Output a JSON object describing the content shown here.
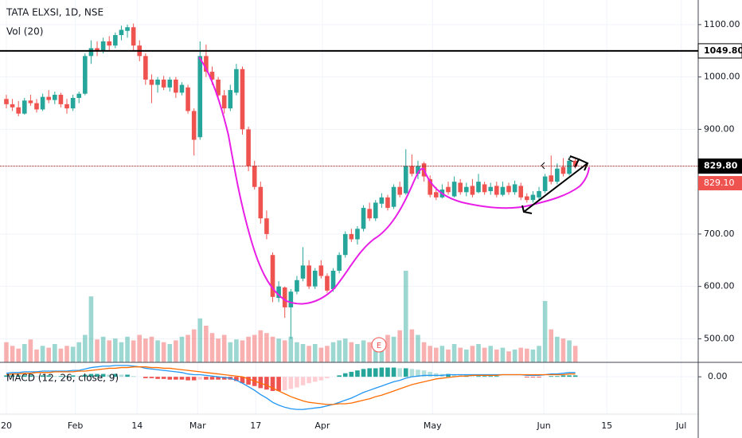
{
  "chart_data": {
    "type": "candlestick",
    "title": "TATA ELXSI, 1D, NSE",
    "volume_label": "Vol (20)",
    "macd_label": "MACD (12, 26, close, 9)",
    "earnings_marker": "E",
    "xlim": [
      -1.05,
      114.3
    ],
    "xticks": [
      {
        "value": 0,
        "label": "20"
      },
      {
        "value": 11.4,
        "label": "Feb"
      },
      {
        "value": 21.6,
        "label": "14"
      },
      {
        "value": 31.6,
        "label": "Mar"
      },
      {
        "value": 41.2,
        "label": "17"
      },
      {
        "value": 52.2,
        "label": "Apr"
      },
      {
        "value": 70.4,
        "label": "May"
      },
      {
        "value": 88.8,
        "label": "Jun"
      },
      {
        "value": 99.2,
        "label": "15"
      },
      {
        "value": 111.5,
        "label": "Jul"
      }
    ],
    "ylim": [
      455,
      1147
    ],
    "yticks": [
      {
        "value": 500,
        "label": "500.00"
      },
      {
        "value": 600,
        "label": "600.00"
      },
      {
        "value": 700,
        "label": "700.00"
      },
      {
        "value": 900,
        "label": "900.00"
      },
      {
        "value": 1000,
        "label": "1000.00"
      },
      {
        "value": 1100,
        "label": "1100.00"
      }
    ],
    "grid": true,
    "up_color": "#26a69a",
    "down_color": "#ef5350",
    "price_lines": [
      {
        "value": 1049.8,
        "label": "1049.80",
        "color": "#000000"
      },
      {
        "value": 829.8,
        "label": "829.80",
        "color": "#8b0000"
      }
    ],
    "last_price": {
      "value": 829.1,
      "label": "829.10",
      "color": "#ef5350"
    },
    "open": [
      958,
      948,
      942,
      930,
      955,
      950,
      938,
      962,
      956,
      966,
      948,
      940,
      960,
      968,
      1040,
      1055,
      1050,
      1068,
      1060,
      1080,
      1088,
      1095,
      1060,
      1040,
      995,
      985,
      995,
      980,
      995,
      970,
      980,
      935,
      885,
      1040,
      1010,
      995,
      965,
      940,
      970,
      1015,
      900,
      830,
      790,
      730,
      660,
      578,
      598,
      560,
      590,
      615,
      640,
      600,
      640,
      620,
      595,
      630,
      660,
      700,
      690,
      710,
      748,
      730,
      758,
      770,
      752,
      790,
      778,
      830,
      815,
      835,
      805,
      780,
      770,
      790,
      772,
      798,
      780,
      792,
      780,
      795,
      782,
      792,
      775,
      792,
      780,
      792,
      772,
      765,
      770,
      782,
      812,
      800,
      828,
      815,
      840
    ],
    "high": [
      966,
      958,
      954,
      960,
      966,
      958,
      968,
      975,
      972,
      970,
      958,
      966,
      972,
      1045,
      1070,
      1068,
      1075,
      1078,
      1085,
      1098,
      1100,
      1102,
      1070,
      1045,
      1005,
      1000,
      1002,
      1000,
      1000,
      990,
      985,
      940,
      1068,
      1062,
      1020,
      1000,
      975,
      985,
      1025,
      1020,
      905,
      840,
      800,
      745,
      665,
      610,
      600,
      595,
      620,
      675,
      650,
      635,
      650,
      625,
      635,
      665,
      705,
      710,
      715,
      755,
      760,
      765,
      778,
      775,
      795,
      800,
      862,
      852,
      840,
      838,
      812,
      790,
      795,
      800,
      810,
      805,
      798,
      805,
      815,
      800,
      798,
      800,
      800,
      798,
      802,
      798,
      778,
      782,
      790,
      815,
      850,
      835,
      845,
      848,
      845
    ],
    "low": [
      940,
      935,
      925,
      928,
      945,
      932,
      935,
      950,
      948,
      942,
      930,
      935,
      950,
      965,
      1025,
      1040,
      1045,
      1050,
      1055,
      1070,
      1075,
      1050,
      1030,
      985,
      950,
      970,
      975,
      972,
      960,
      965,
      930,
      850,
      880,
      1000,
      985,
      960,
      930,
      935,
      965,
      890,
      820,
      785,
      720,
      690,
      570,
      570,
      540,
      500,
      585,
      610,
      595,
      595,
      615,
      588,
      590,
      625,
      655,
      685,
      680,
      705,
      725,
      725,
      750,
      745,
      748,
      770,
      775,
      810,
      805,
      800,
      770,
      765,
      768,
      775,
      770,
      775,
      772,
      770,
      778,
      775,
      775,
      770,
      772,
      775,
      775,
      765,
      760,
      760,
      765,
      778,
      795,
      795,
      810,
      812,
      825
    ],
    "close": [
      948,
      942,
      930,
      955,
      950,
      938,
      962,
      956,
      966,
      948,
      940,
      960,
      968,
      1040,
      1055,
      1050,
      1068,
      1060,
      1080,
      1090,
      1095,
      1060,
      1040,
      995,
      985,
      995,
      980,
      995,
      970,
      985,
      935,
      880,
      1040,
      1010,
      995,
      965,
      940,
      975,
      1015,
      900,
      830,
      790,
      730,
      700,
      580,
      600,
      560,
      590,
      612,
      640,
      600,
      630,
      620,
      592,
      630,
      660,
      700,
      690,
      710,
      750,
      730,
      760,
      770,
      750,
      790,
      775,
      830,
      815,
      830,
      810,
      775,
      770,
      785,
      780,
      800,
      780,
      790,
      775,
      800,
      780,
      790,
      775,
      790,
      780,
      795,
      770,
      765,
      775,
      782,
      810,
      800,
      825,
      815,
      840,
      829.1
    ],
    "volume_ylim": [
      0,
      100
    ],
    "volume": [
      22,
      18,
      15,
      20,
      25,
      14,
      18,
      16,
      20,
      15,
      18,
      17,
      22,
      30,
      72,
      25,
      28,
      24,
      26,
      22,
      28,
      24,
      30,
      26,
      28,
      24,
      22,
      20,
      24,
      28,
      30,
      36,
      48,
      40,
      32,
      26,
      30,
      22,
      25,
      24,
      28,
      30,
      35,
      32,
      28,
      26,
      24,
      28,
      22,
      20,
      18,
      20,
      16,
      18,
      22,
      24,
      26,
      22,
      20,
      24,
      22,
      20,
      18,
      30,
      28,
      35,
      100,
      36,
      30,
      22,
      18,
      16,
      18,
      14,
      20,
      16,
      14,
      18,
      20,
      16,
      18,
      14,
      16,
      12,
      14,
      16,
      15,
      14,
      18,
      67,
      36,
      28,
      26,
      24,
      18
    ],
    "macd_ylim": [
      -47,
      17
    ],
    "macd_yticks": [
      {
        "value": 0,
        "label": "0.00"
      }
    ],
    "macd_color": "#2196f3",
    "signal_color": "#ff6d00",
    "macd": [
      5,
      6,
      6,
      7,
      7,
      7,
      8,
      8,
      8,
      8,
      8,
      9,
      9,
      11,
      13,
      14,
      15,
      15,
      16,
      16,
      16,
      15,
      14,
      12,
      11,
      10,
      9,
      8,
      7,
      6,
      4,
      3,
      3,
      2,
      1,
      0,
      -1,
      -2,
      -5,
      -9,
      -14,
      -19,
      -25,
      -30,
      -36,
      -40,
      -43,
      -45,
      -46,
      -46,
      -45,
      -44,
      -43,
      -41,
      -39,
      -36,
      -33,
      -30,
      -26,
      -22,
      -19,
      -16,
      -13,
      -10,
      -7,
      -5,
      -2,
      0,
      1,
      2,
      2,
      2,
      2,
      3,
      3,
      3,
      3,
      3,
      3,
      3,
      3,
      3,
      3,
      3,
      3,
      3,
      2,
      2,
      2,
      3,
      4,
      4,
      5,
      6,
      6
    ],
    "signal": [
      3,
      4,
      4,
      5,
      5,
      6,
      6,
      6,
      7,
      7,
      7,
      7,
      8,
      8,
      9,
      10,
      11,
      12,
      12,
      13,
      13,
      14,
      14,
      14,
      13,
      13,
      12,
      12,
      11,
      10,
      9,
      8,
      7,
      6,
      5,
      4,
      3,
      2,
      1,
      0,
      -3,
      -6,
      -9,
      -12,
      -16,
      -20,
      -24,
      -28,
      -31,
      -34,
      -36,
      -37,
      -38,
      -39,
      -39,
      -38,
      -38,
      -37,
      -35,
      -33,
      -31,
      -28,
      -26,
      -23,
      -20,
      -17,
      -14,
      -11,
      -9,
      -7,
      -5,
      -3,
      -2,
      -1,
      0,
      1,
      1,
      2,
      2,
      2,
      2,
      2,
      3,
      3,
      3,
      3,
      3,
      3,
      3,
      3,
      3,
      3,
      3,
      4,
      4
    ],
    "histogram": [
      2,
      2,
      2,
      2,
      2,
      1,
      2,
      2,
      1,
      1,
      1,
      2,
      1,
      3,
      4,
      4,
      4,
      3,
      4,
      3,
      3,
      1,
      0,
      -2,
      -2,
      -3,
      -3,
      -4,
      -4,
      -4,
      -5,
      -5,
      -4,
      -4,
      -4,
      -4,
      -4,
      -4,
      -6,
      -9,
      -11,
      -13,
      -16,
      -18,
      -20,
      -20,
      -19,
      -17,
      -15,
      -12,
      -9,
      -7,
      -5,
      -2,
      0,
      2,
      5,
      7,
      9,
      11,
      12,
      12,
      13,
      13,
      13,
      12,
      12,
      11,
      10,
      9,
      7,
      5,
      4,
      4,
      3,
      2,
      2,
      1,
      1,
      1,
      1,
      1,
      0,
      0,
      0,
      0,
      -1,
      -1,
      -1,
      0,
      1,
      1,
      2,
      2,
      2
    ]
  }
}
